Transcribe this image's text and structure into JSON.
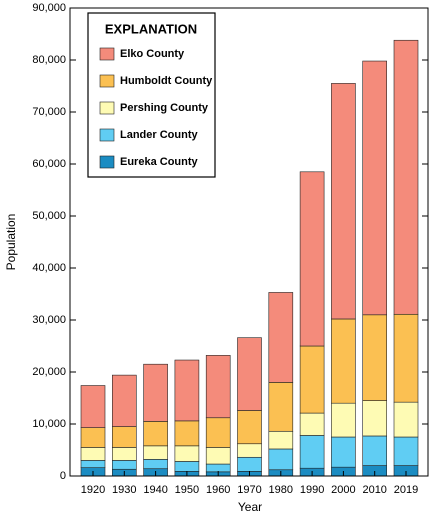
{
  "chart_data": {
    "type": "stacked_bar",
    "categories": [
      "1920",
      "1930",
      "1940",
      "1950",
      "1960",
      "1970",
      "1980",
      "1990",
      "2000",
      "2010",
      "2019"
    ],
    "series": [
      {
        "name": "Eureka County",
        "color": "#1b8cc2",
        "values": [
          1600,
          1300,
          1400,
          900,
          800,
          900,
          1200,
          1500,
          1700,
          2000,
          2000
        ]
      },
      {
        "name": "Lander County",
        "color": "#60cdf3",
        "values": [
          1400,
          1700,
          1800,
          1900,
          1500,
          2700,
          4000,
          6300,
          5800,
          5700,
          5500
        ]
      },
      {
        "name": "Pershing County",
        "color": "#fefbb4",
        "values": [
          2500,
          2500,
          2600,
          3000,
          3200,
          2600,
          3400,
          4300,
          6500,
          6800,
          6700
        ]
      },
      {
        "name": "Humboldt County",
        "color": "#fbc052",
        "values": [
          3800,
          4000,
          4700,
          4800,
          5700,
          6400,
          9400,
          12900,
          16200,
          16500,
          16900
        ]
      },
      {
        "name": "Elko County",
        "color": "#f48b7b",
        "values": [
          8100,
          9900,
          11000,
          11700,
          12000,
          14000,
          17300,
          33500,
          45300,
          48800,
          52700
        ]
      }
    ],
    "legend_title": "EXPLANATION",
    "x_label": "Year",
    "y_label": "Population",
    "ylim": [
      0,
      90000
    ],
    "yticks": [
      0,
      {
        "value": 10000,
        "label": "10,000"
      },
      {
        "value": 20000,
        "label": "20,000"
      },
      {
        "value": 30000,
        "label": "30,000"
      },
      {
        "value": 40000,
        "label": "40,000"
      },
      {
        "value": 50000,
        "label": "50,000"
      },
      {
        "value": 60000,
        "label": "60,000"
      },
      {
        "value": 70000,
        "label": "70,000"
      },
      {
        "value": 80000,
        "label": "80,000"
      },
      {
        "value": 90000,
        "label": "90,000"
      }
    ]
  }
}
